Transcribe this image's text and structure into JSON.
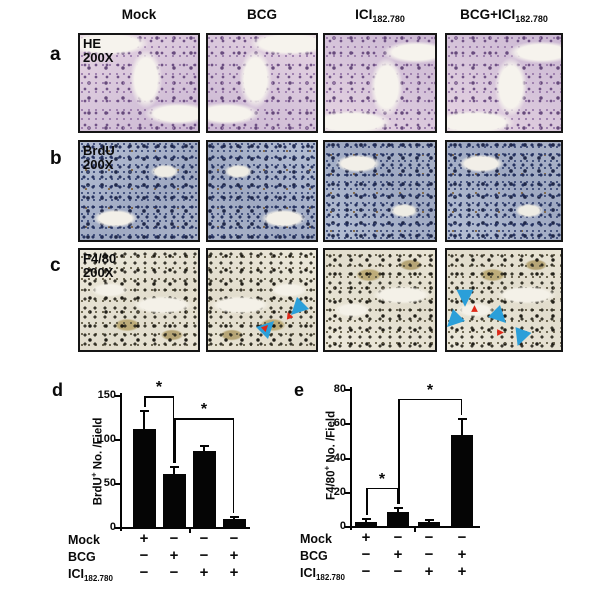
{
  "figure": {
    "column_headers": [
      {
        "label": "Mock",
        "subscript": ""
      },
      {
        "label": "BCG",
        "subscript": ""
      },
      {
        "label": "ICI",
        "subscript": "182.780"
      },
      {
        "label": "BCG+ICI",
        "subscript": "182.780"
      }
    ],
    "rows": [
      {
        "letter": "a",
        "stain": "HE",
        "magnification": "200X"
      },
      {
        "letter": "b",
        "stain": "BrdU",
        "magnification": "200X"
      },
      {
        "letter": "c",
        "stain": "F4/80",
        "magnification": "200X"
      }
    ],
    "annotations": {
      "blue_arrows_in_c_bcg_panel": 2,
      "blue_arrows_in_c_bcg_ici_panel": 4,
      "arrow_color": "#2b9fd9",
      "red_mark_color": "#e02818"
    }
  },
  "chart_data": [
    {
      "type": "bar",
      "panel": "d",
      "ylabel": "BrdU+ No. /Field",
      "ylabel_parts": {
        "base": "BrdU",
        "sup": "+",
        "rest": " No. /Field"
      },
      "categories": [
        "Mock",
        "BCG",
        "ICI182.780",
        "BCG+ICI182.780"
      ],
      "values": [
        112,
        61,
        87,
        10
      ],
      "errors": [
        21,
        8,
        6,
        2
      ],
      "ylim": [
        0,
        150
      ],
      "yticks": [
        0,
        50,
        100,
        150
      ],
      "grid": false,
      "bar_color": "#050505",
      "significance": [
        {
          "between": [
            0,
            1
          ],
          "level": 150,
          "label": "*"
        },
        {
          "between": [
            1,
            3
          ],
          "level": 125,
          "label": "*"
        }
      ],
      "condition_rows": [
        {
          "label": "Mock",
          "sub": "",
          "signs": [
            "+",
            "−",
            "−",
            "−"
          ]
        },
        {
          "label": "BCG",
          "sub": "",
          "signs": [
            "−",
            "+",
            "−",
            "+"
          ]
        },
        {
          "label": "ICI",
          "sub": "182.780",
          "signs": [
            "−",
            "−",
            "+",
            "+"
          ]
        }
      ]
    },
    {
      "type": "bar",
      "panel": "e",
      "ylabel": "F4/80+ No. /Field",
      "ylabel_parts": {
        "base": "F4/80",
        "sup": "+",
        "rest": " No. /Field"
      },
      "categories": [
        "Mock",
        "BCG",
        "ICI182.780",
        "BCG+ICI182.780"
      ],
      "values": [
        3,
        9,
        3,
        54
      ],
      "errors": [
        1.5,
        2,
        1,
        9
      ],
      "ylim": [
        0,
        80
      ],
      "yticks": [
        0,
        20,
        40,
        60,
        80
      ],
      "grid": false,
      "bar_color": "#050505",
      "significance": [
        {
          "between": [
            0,
            1
          ],
          "level": 23,
          "label": "*"
        },
        {
          "between": [
            1,
            3
          ],
          "level": 75,
          "label": "*"
        }
      ],
      "condition_rows": [
        {
          "label": "Mock",
          "sub": "",
          "signs": [
            "+",
            "−",
            "−",
            "−"
          ]
        },
        {
          "label": "BCG",
          "sub": "",
          "signs": [
            "−",
            "+",
            "−",
            "+"
          ]
        },
        {
          "label": "ICI",
          "sub": "182.780",
          "signs": [
            "−",
            "−",
            "+",
            "+"
          ]
        }
      ]
    }
  ]
}
